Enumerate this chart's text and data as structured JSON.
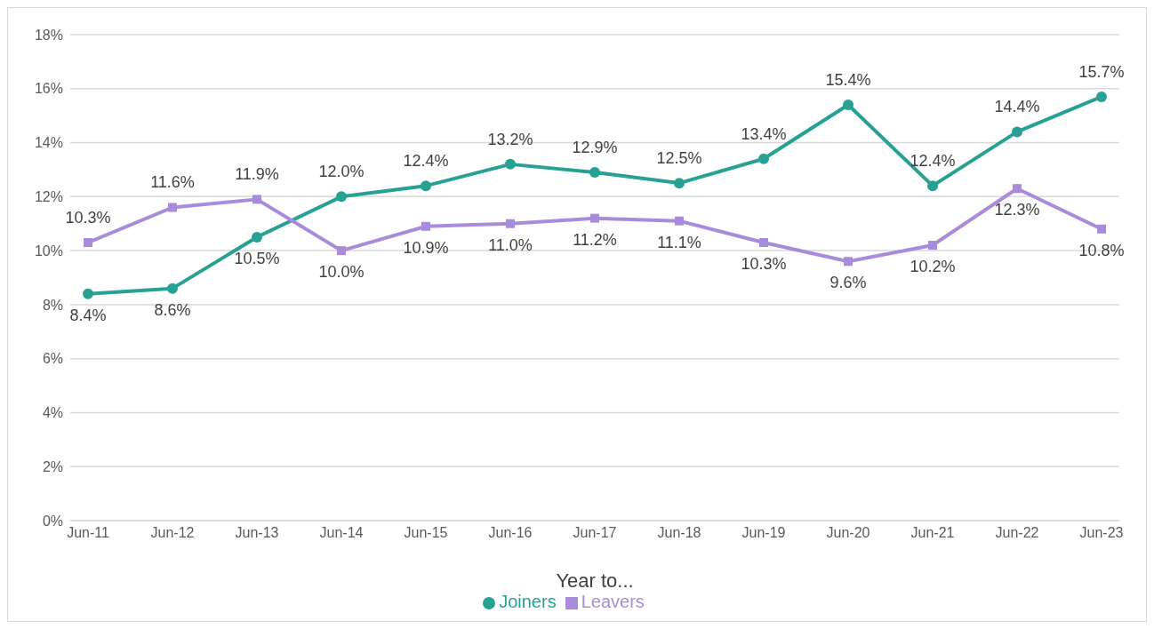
{
  "chart_data": {
    "type": "line",
    "xlabel": "Year to...",
    "categories": [
      "Jun-11",
      "Jun-12",
      "Jun-13",
      "Jun-14",
      "Jun-15",
      "Jun-16",
      "Jun-17",
      "Jun-18",
      "Jun-19",
      "Jun-20",
      "Jun-21",
      "Jun-22",
      "Jun-23"
    ],
    "series": [
      {
        "name": "Joiners",
        "color": "#26a193",
        "marker": "circle",
        "values": [
          8.4,
          8.6,
          10.5,
          12.0,
          12.4,
          13.2,
          12.9,
          12.5,
          13.4,
          15.4,
          12.4,
          14.4,
          15.7
        ],
        "value_labels": [
          "8.4%",
          "8.6%",
          "10.5%",
          "12.0%",
          "12.4%",
          "13.2%",
          "12.9%",
          "12.5%",
          "13.4%",
          "15.4%",
          "12.4%",
          "14.4%",
          "15.7%"
        ]
      },
      {
        "name": "Leavers",
        "color": "#a98bdb",
        "marker": "square",
        "values": [
          10.3,
          11.6,
          11.9,
          10.0,
          10.9,
          11.0,
          11.2,
          11.1,
          10.3,
          9.6,
          10.2,
          12.3,
          10.8
        ],
        "value_labels": [
          "10.3%",
          "11.6%",
          "11.9%",
          "10.0%",
          "10.9%",
          "11.0%",
          "11.2%",
          "11.1%",
          "10.3%",
          "9.6%",
          "10.2%",
          "12.3%",
          "10.8%"
        ]
      }
    ],
    "ylim": [
      0,
      18
    ],
    "yticks": [
      {
        "value": 0,
        "label": "0%"
      },
      {
        "value": 2,
        "label": "2%"
      },
      {
        "value": 4,
        "label": "4%"
      },
      {
        "value": 6,
        "label": "6%"
      },
      {
        "value": 8,
        "label": "8%"
      },
      {
        "value": 10,
        "label": "10%"
      },
      {
        "value": 12,
        "label": "12%"
      },
      {
        "value": 14,
        "label": "14%"
      },
      {
        "value": 16,
        "label": "16%"
      },
      {
        "value": 18,
        "label": "18%"
      }
    ],
    "grid": "y",
    "legend": "bottom",
    "line_style": "solid"
  }
}
